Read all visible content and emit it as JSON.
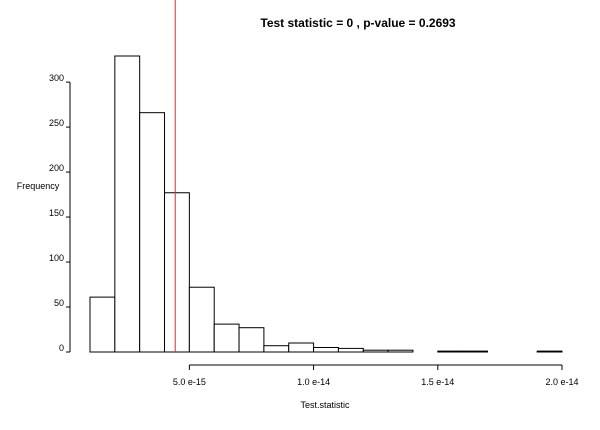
{
  "chart_data": {
    "type": "bar",
    "title": "Test statistic =  0 , p-value =  0.2693",
    "xlabel": "Test.statistic",
    "ylabel": "Frequency",
    "bin_edges": [
      1e-15,
      2e-15,
      3e-15,
      4e-15,
      5e-15,
      6e-15,
      7e-15,
      8e-15,
      9e-15,
      1e-14,
      1.1e-14,
      1.2e-14,
      1.3e-14,
      1.4e-14,
      1.5e-14,
      1.6e-14,
      1.7e-14,
      1.8e-14,
      1.9e-14,
      2e-14
    ],
    "values": [
      61,
      329,
      266,
      177,
      72,
      31,
      27,
      7,
      10,
      5,
      4,
      2,
      2,
      0,
      1,
      1,
      0,
      0,
      1
    ],
    "x_ticks": [
      {
        "value": 5e-15,
        "label": "5.0 e-15"
      },
      {
        "value": 1e-14,
        "label": "1.0 e-14"
      },
      {
        "value": 1.5e-14,
        "label": "1.5 e-14"
      },
      {
        "value": 2e-14,
        "label": "2.0 e-14"
      }
    ],
    "y_ticks": [
      {
        "value": 0,
        "label": "0"
      },
      {
        "value": 50,
        "label": "50"
      },
      {
        "value": 100,
        "label": "100"
      },
      {
        "value": 150,
        "label": "150"
      },
      {
        "value": 200,
        "label": "200"
      },
      {
        "value": 250,
        "label": "250"
      },
      {
        "value": 300,
        "label": "300"
      }
    ],
    "xlim": [
      1e-15,
      2e-14
    ],
    "ylim": [
      0,
      329
    ],
    "reference_line_x": 4.43e-15,
    "reference_line_color": "#c0392b",
    "bar_fill": "#ffffff",
    "bar_stroke": "#000000",
    "grid": false,
    "legend": "none"
  }
}
